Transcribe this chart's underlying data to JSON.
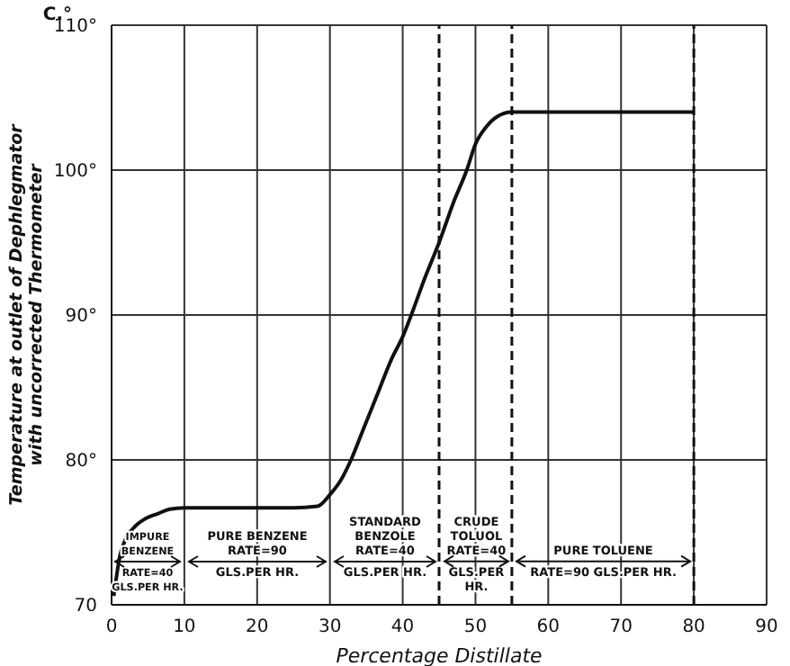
{
  "chart_data": {
    "type": "line",
    "xlabel": "Percentage Distillate",
    "ylabel": "Temperature at outlet of Dephlegmator\nwith uncorrected Thermometer",
    "x": [
      0.3,
      1.2,
      2,
      3.2,
      4.5,
      6.4,
      8,
      10,
      15,
      20,
      25,
      28.3,
      30,
      31.5,
      32.9,
      34.5,
      36.5,
      38.5,
      40,
      41.4,
      43,
      45,
      47,
      48.8,
      50,
      51.5,
      53,
      55,
      60,
      70,
      80
    ],
    "series": [
      {
        "color": "#111111",
        "values": [
          70.6,
          73.5,
          74.6,
          75.4,
          75.9,
          76.3,
          76.6,
          76.7,
          76.7,
          76.7,
          76.7,
          76.8,
          77.6,
          78.6,
          80,
          82,
          84.5,
          87,
          88.5,
          90.3,
          92.5,
          95,
          97.8,
          100,
          101.8,
          103,
          103.7,
          104,
          104,
          104,
          104
        ]
      }
    ],
    "xlim": [
      0,
      90
    ],
    "xticks": [
      0,
      10,
      20,
      30,
      40,
      50,
      60,
      70,
      80,
      90
    ],
    "ylim": [
      70,
      110
    ],
    "yticks": [
      70,
      {
        "value": 80,
        "label": "80°"
      },
      {
        "value": 90,
        "label": "90°"
      },
      {
        "value": 100,
        "label": "100°"
      },
      {
        "value": 110,
        "label": "110°"
      }
    ],
    "grid": true,
    "marker": "none",
    "line_style": "solid",
    "ref_lines": [
      {
        "axis": "x",
        "value": 45,
        "line_style": "dashed",
        "color": "#111111"
      },
      {
        "axis": "x",
        "value": 55,
        "line_style": "dashed",
        "color": "#111111"
      },
      {
        "axis": "x",
        "value": 80,
        "line_style": "dashed",
        "color": "#111111"
      }
    ],
    "annotations": [
      "IMPURE\nBENZENE\nRATE=40\nGLS.PER HR.",
      "PURE BENZENE\nRATE=90\nGLS.PER HR.",
      "STANDARD\nBENZOLE\nRATE=40\nGLS.PER HR.",
      {
        "text": "CRUDE\nTOLUOL\nRATE=40\nGLS.PER\nHR.",
        "x": 55,
        "y": 73
      },
      {
        "text": "PURE TOLUENE\nRATE=90 GLS.PER HR.",
        "x": 80,
        "y": 73
      },
      "C.°"
    ]
  }
}
